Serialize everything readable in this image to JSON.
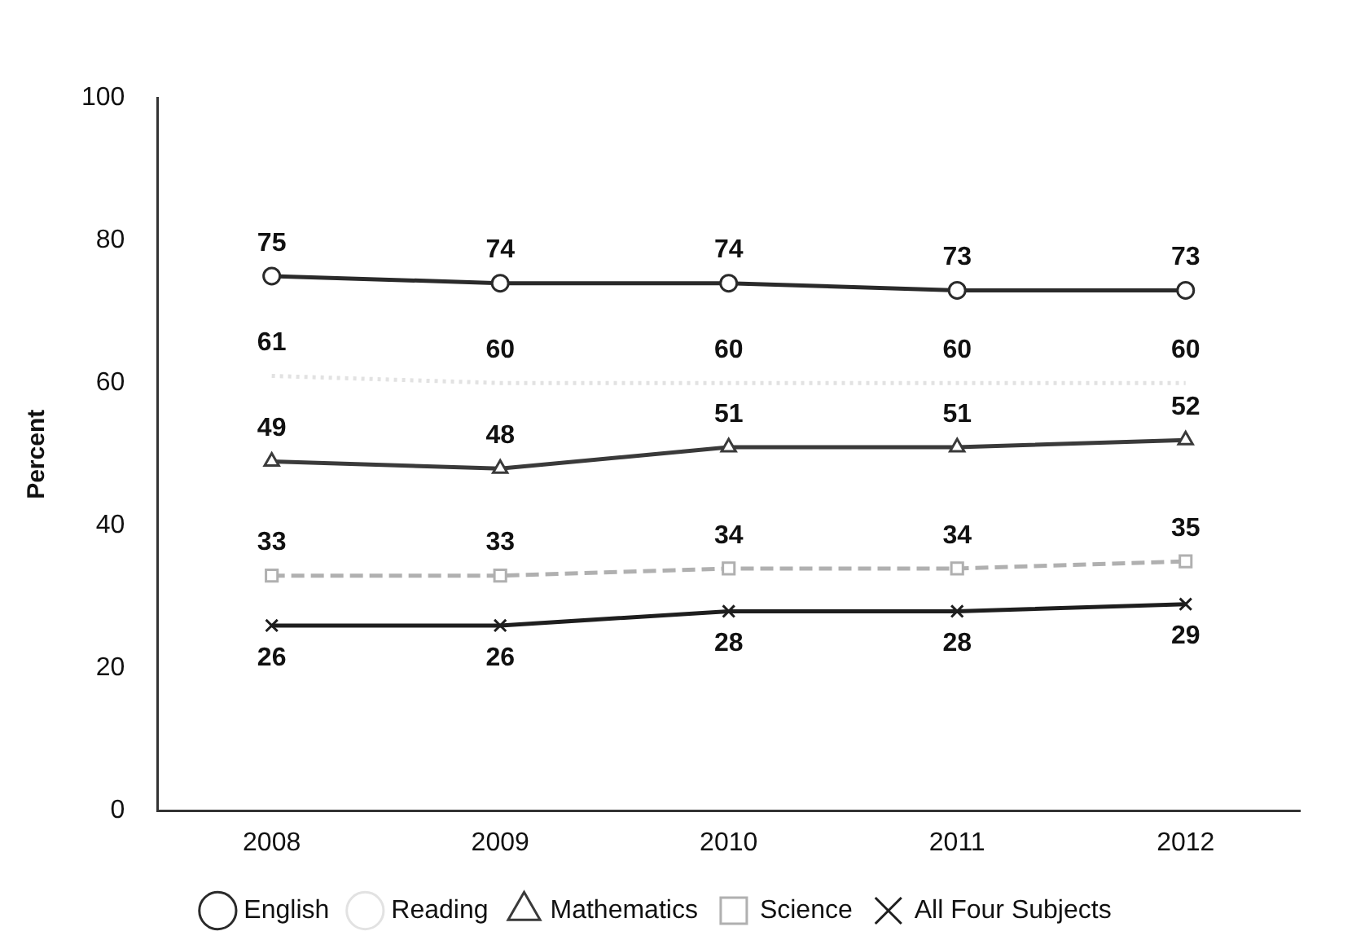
{
  "chart_data": {
    "type": "line",
    "ylabel": "Percent",
    "categories": [
      "2008",
      "2009",
      "2010",
      "2011",
      "2012"
    ],
    "ylim": [
      0,
      100
    ],
    "yticks": [
      0,
      20,
      40,
      60,
      80,
      100
    ],
    "grid": false,
    "legend": "bottom",
    "data_labels": true,
    "series": [
      {
        "name": "English",
        "color": "#2a2a2a",
        "marker": "circle",
        "line_style": "solid",
        "values": [
          75,
          74,
          74,
          73,
          73
        ]
      },
      {
        "name": "Reading",
        "color": "#e2e2e2",
        "marker": "none",
        "line_style": "dotted",
        "values": [
          61,
          60,
          60,
          60,
          60
        ]
      },
      {
        "name": "Mathematics",
        "color": "#3a3a3a",
        "marker": "triangle",
        "line_style": "solid",
        "values": [
          49,
          48,
          51,
          51,
          52
        ]
      },
      {
        "name": "Science",
        "color": "#b0b0b0",
        "marker": "square",
        "line_style": "dashed",
        "values": [
          33,
          33,
          34,
          34,
          35
        ]
      },
      {
        "name": "All Four Subjects",
        "color": "#1e1e1e",
        "marker": "cross",
        "line_style": "solid",
        "values": [
          26,
          26,
          28,
          28,
          29
        ]
      }
    ]
  }
}
